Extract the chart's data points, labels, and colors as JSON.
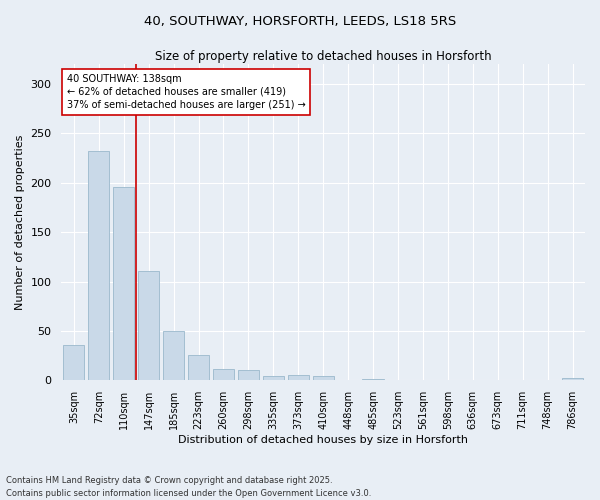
{
  "title1": "40, SOUTHWAY, HORSFORTH, LEEDS, LS18 5RS",
  "title2": "Size of property relative to detached houses in Horsforth",
  "xlabel": "Distribution of detached houses by size in Horsforth",
  "ylabel": "Number of detached properties",
  "categories": [
    "35sqm",
    "72sqm",
    "110sqm",
    "147sqm",
    "185sqm",
    "223sqm",
    "260sqm",
    "298sqm",
    "335sqm",
    "373sqm",
    "410sqm",
    "448sqm",
    "485sqm",
    "523sqm",
    "561sqm",
    "598sqm",
    "636sqm",
    "673sqm",
    "711sqm",
    "748sqm",
    "786sqm"
  ],
  "values": [
    36,
    232,
    196,
    111,
    50,
    26,
    11,
    10,
    4,
    5,
    4,
    0,
    1,
    0,
    0,
    0,
    0,
    0,
    0,
    0,
    2
  ],
  "bar_color": "#c9d9e8",
  "bar_edge_color": "#9ab8cc",
  "red_line_x": 2.5,
  "annotation_text": "40 SOUTHWAY: 138sqm\n← 62% of detached houses are smaller (419)\n37% of semi-detached houses are larger (251) →",
  "annotation_box_color": "#ffffff",
  "annotation_box_edge": "#cc0000",
  "annotation_text_color": "#000000",
  "vline_color": "#cc0000",
  "ylim": [
    0,
    320
  ],
  "yticks": [
    0,
    50,
    100,
    150,
    200,
    250,
    300
  ],
  "background_color": "#e8eef5",
  "footnote": "Contains HM Land Registry data © Crown copyright and database right 2025.\nContains public sector information licensed under the Open Government Licence v3.0."
}
